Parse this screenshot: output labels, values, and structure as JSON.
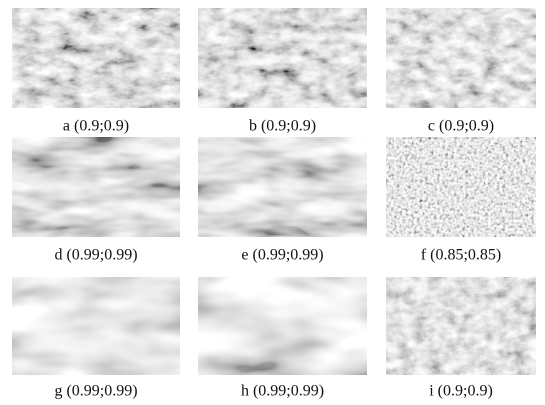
{
  "figure": {
    "panels": [
      {
        "caption": "a (0.9;0.9)"
      },
      {
        "caption": "b (0.9;0.9)"
      },
      {
        "caption": "c (0.9;0.9)"
      },
      {
        "caption": "d (0.99;0.99)"
      },
      {
        "caption": "e (0.99;0.99)"
      },
      {
        "caption": "f (0.85;0.85)"
      },
      {
        "caption": "g (0.99;0.99)"
      },
      {
        "caption": "h (0.99;0.99)"
      },
      {
        "caption": "i (0.9;0.9)"
      }
    ]
  }
}
